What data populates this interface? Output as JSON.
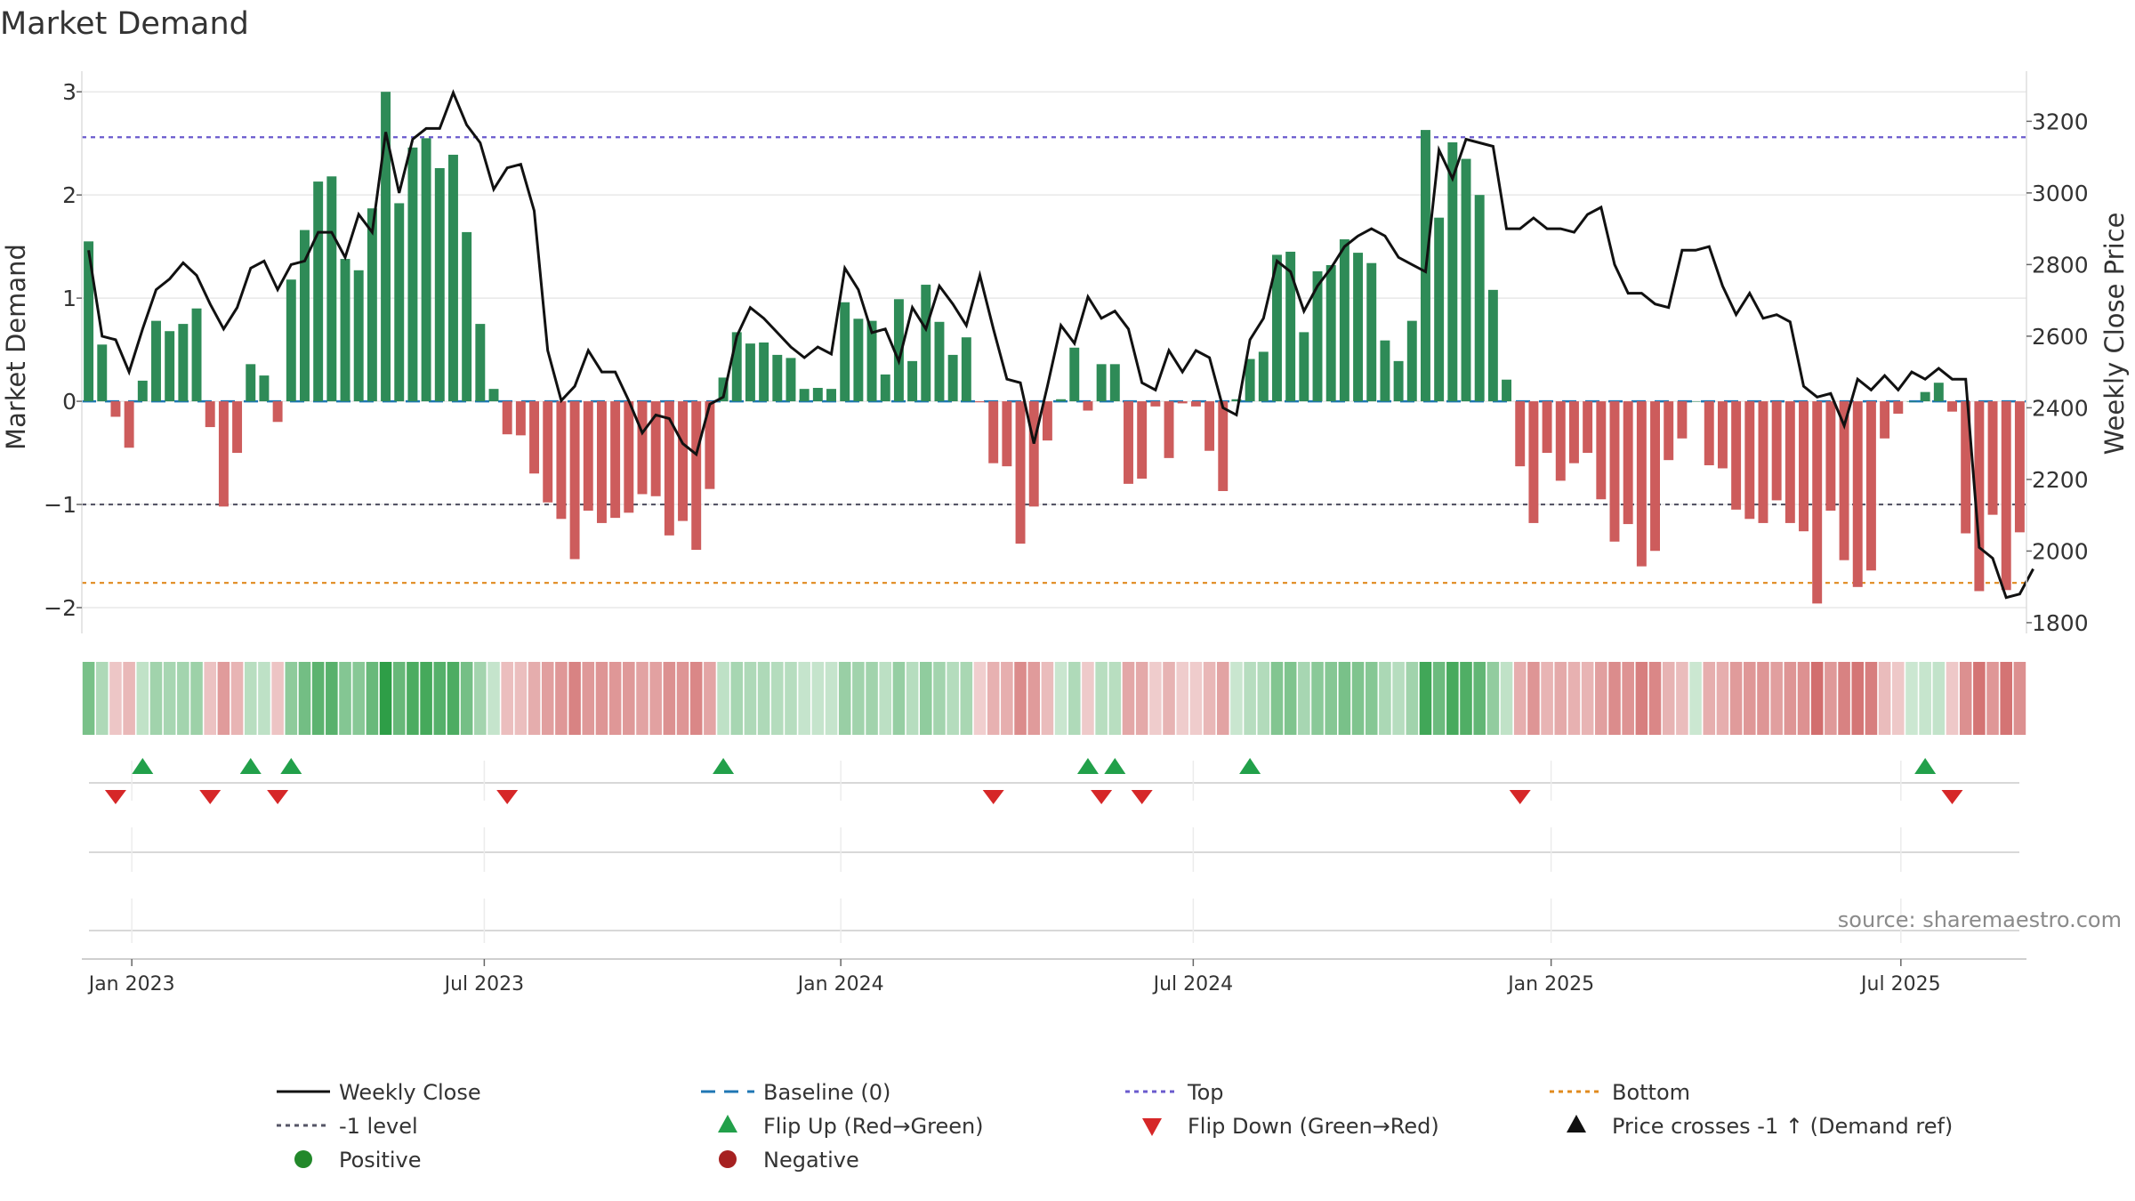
{
  "title": "Market Demand",
  "source": "source: sharemaestro.com",
  "colors": {
    "positive_bar": "#2e8b57",
    "negative_bar": "#cd5c5c",
    "price_line": "#111111",
    "baseline": "#1f77b4",
    "top_line": "#6a5acd",
    "minus1_line": "#555566",
    "bottom_line": "#e08a1e",
    "flip_up": "#22a04a",
    "flip_down": "#d62728",
    "grid": "#e8e8e8"
  },
  "chart_data": {
    "type": "bar",
    "title": "Market Demand",
    "ylabel": "Market Demand",
    "y2label": "Weekly Close Price",
    "ylim": [
      -2.25,
      3.2
    ],
    "y2lim": [
      1770,
      3340
    ],
    "yticks": [
      "3",
      "2",
      "1",
      "0",
      "−1",
      "−2"
    ],
    "y2ticks": [
      "3200",
      "3000",
      "2800",
      "2600",
      "2400",
      "2200",
      "2000",
      "1800"
    ],
    "reference_lines": {
      "top": 2.56,
      "bottom": -1.76,
      "minus1": -1,
      "baseline": 0
    },
    "x_ticks": [
      {
        "label": "Jan 2023",
        "week": 3.2
      },
      {
        "label": "Jul 2023",
        "week": 29.3
      },
      {
        "label": "Jan 2024",
        "week": 55.7
      },
      {
        "label": "Jul 2024",
        "week": 81.8
      },
      {
        "label": "Jan 2025",
        "week": 108.3
      },
      {
        "label": "Jul 2025",
        "week": 134.2
      }
    ],
    "demand": [
      1.55,
      0.55,
      -0.15,
      -0.45,
      0.2,
      0.78,
      0.68,
      0.75,
      0.9,
      -0.25,
      -1.02,
      -0.5,
      0.36,
      0.25,
      -0.2,
      1.18,
      1.66,
      2.13,
      2.18,
      1.38,
      1.27,
      1.87,
      3.0,
      1.92,
      2.46,
      2.55,
      2.26,
      2.39,
      1.64,
      0.75,
      0.12,
      -0.32,
      -0.33,
      -0.7,
      -0.98,
      -1.14,
      -1.53,
      -1.06,
      -1.18,
      -1.13,
      -1.08,
      -0.9,
      -0.92,
      -1.3,
      -1.16,
      -1.44,
      -0.85,
      0.23,
      0.67,
      0.56,
      0.57,
      0.45,
      0.42,
      0.12,
      0.13,
      0.12,
      0.96,
      0.8,
      0.78,
      0.26,
      0.99,
      0.39,
      1.13,
      0.77,
      0.45,
      0.62,
      -0.01,
      -0.6,
      -0.63,
      -1.38,
      -1.02,
      -0.38,
      0.02,
      0.52,
      -0.09,
      0.36,
      0.36,
      -0.8,
      -0.75,
      -0.05,
      -0.55,
      -0.02,
      -0.05,
      -0.48,
      -0.87,
      0.02,
      0.41,
      0.48,
      1.42,
      1.45,
      0.67,
      1.26,
      1.32,
      1.57,
      1.44,
      1.34,
      0.59,
      0.39,
      0.78,
      2.63,
      1.78,
      2.51,
      2.35,
      2.0,
      1.08,
      0.21,
      -0.63,
      -1.18,
      -0.5,
      -0.77,
      -0.6,
      -0.5,
      -0.95,
      -1.36,
      -1.19,
      -1.6,
      -1.45,
      -0.57,
      -0.36,
      0.0,
      -0.62,
      -0.65,
      -1.05,
      -1.14,
      -1.18,
      -0.96,
      -1.18,
      -1.26,
      -1.96,
      -1.06,
      -1.54,
      -1.8,
      -1.64,
      -0.36,
      -0.12,
      0.0,
      0.09,
      0.18,
      -0.1,
      -1.28,
      -1.84,
      -1.1,
      -1.83,
      -1.27
    ],
    "price": [
      2840,
      2600,
      2590,
      2500,
      2620,
      2730,
      2760,
      2805,
      2770,
      2690,
      2620,
      2680,
      2790,
      2810,
      2730,
      2800,
      2810,
      2890,
      2890,
      2820,
      2940,
      2890,
      3170,
      3000,
      3150,
      3180,
      3180,
      3280,
      3190,
      3140,
      3010,
      3070,
      3080,
      2950,
      2560,
      2420,
      2460,
      2560,
      2500,
      2500,
      2420,
      2330,
      2380,
      2370,
      2300,
      2270,
      2410,
      2430,
      2600,
      2680,
      2650,
      2610,
      2570,
      2540,
      2570,
      2550,
      2790,
      2730,
      2610,
      2620,
      2530,
      2680,
      2620,
      2740,
      2690,
      2630,
      2770,
      2620,
      2480,
      2470,
      2300,
      2460,
      2630,
      2580,
      2710,
      2650,
      2670,
      2620,
      2470,
      2450,
      2560,
      2500,
      2560,
      2540,
      2400,
      2380,
      2590,
      2650,
      2810,
      2780,
      2670,
      2740,
      2790,
      2850,
      2880,
      2900,
      2880,
      2820,
      2800,
      2780,
      3120,
      3040,
      3150,
      3140,
      3130,
      2900,
      2900,
      2930,
      2900,
      2900,
      2890,
      2940,
      2960,
      2800,
      2720,
      2720,
      2690,
      2680,
      2840,
      2840,
      2850,
      2740,
      2660,
      2720,
      2650,
      2660,
      2640,
      2460,
      2430,
      2440,
      2350,
      2480,
      2450,
      2490,
      2450,
      2500,
      2480,
      2510,
      2480,
      2480,
      2010,
      1980,
      1870,
      1880,
      1950
    ],
    "flip_up_weeks": [
      4,
      12,
      15,
      47,
      74,
      76,
      86,
      136
    ],
    "flip_down_weeks": [
      2,
      9,
      14,
      31,
      67,
      75,
      78,
      106,
      138
    ],
    "legend": {
      "weekly_close": "Weekly Close",
      "baseline": "Baseline (0)",
      "top": "Top",
      "bottom": "Bottom",
      "minus1": "-1 level",
      "flip_up": "Flip Up (Red→Green)",
      "flip_down": "Flip Down (Green→Red)",
      "price_cross": "Price crosses -1 ↑ (Demand ref)",
      "positive": "Positive",
      "negative": "Negative"
    }
  }
}
